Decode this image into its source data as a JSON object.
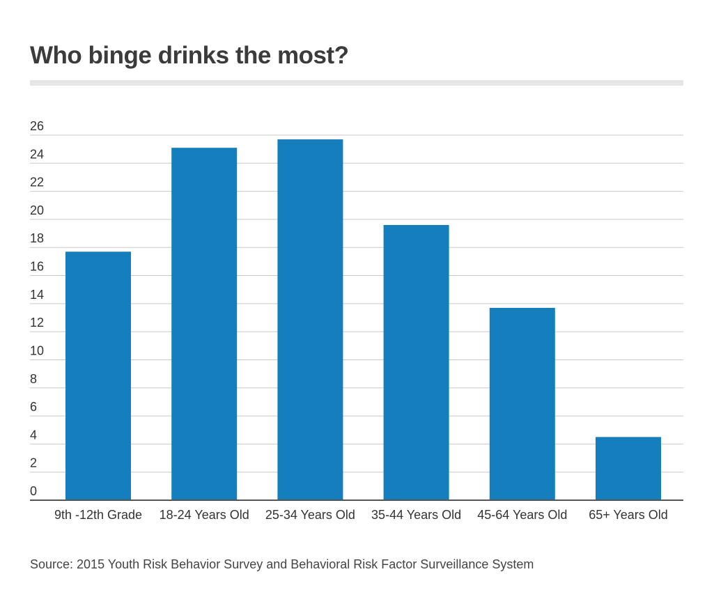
{
  "chart_data": {
    "type": "bar",
    "title": "Who binge drinks the most?",
    "categories": [
      "9th -12th Grade",
      "18-24 Years Old",
      "25-34 Years Old",
      "35-44 Years Old",
      "45-64 Years Old",
      "65+ Years Old"
    ],
    "values": [
      17.7,
      25.1,
      25.7,
      19.6,
      13.7,
      4.5
    ],
    "xlabel": "",
    "ylabel": "",
    "ylim": [
      0,
      26
    ],
    "yticks": [
      0,
      2,
      4,
      6,
      8,
      10,
      12,
      14,
      16,
      18,
      20,
      22,
      24,
      26
    ],
    "grid": true,
    "bar_color": "#157fbe",
    "source": "Source: 2015 Youth Risk Behavior Survey and Behavioral Risk Factor Surveillance System"
  }
}
